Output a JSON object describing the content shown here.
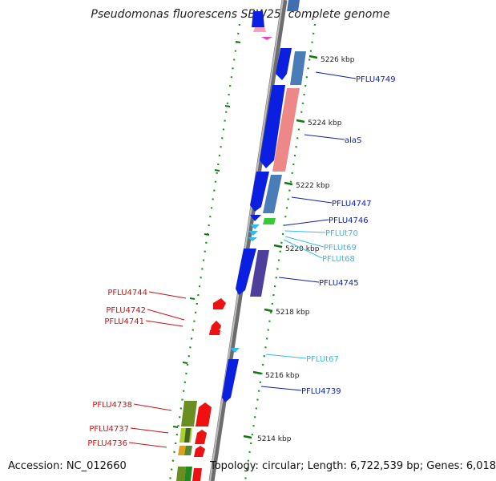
{
  "title": "Pseudomonas fluorescens SBW25, complete genome",
  "footer": {
    "accession": "Accession: NC_012660",
    "summary": "Topology: circular; Length: 6,722,539 bp; Genes: 6,018"
  },
  "ticks": [
    "5226 kbp",
    "5224 kbp",
    "5222 kbp",
    "5220 kbp",
    "5218 kbp",
    "5216 kbp",
    "5214 kbp"
  ],
  "plus_labels": [
    "PFLU4749",
    "alaS",
    "PFLU4747",
    "PFLU4746",
    "PFLUt70",
    "PFLUt69",
    "PFLUt68",
    "PFLU4745",
    "PFLUt67",
    "PFLU4739"
  ],
  "minus_labels": [
    "PFLU4744",
    "PFLU4742",
    "PFLU4741",
    "PFLU4738",
    "PFLU4737",
    "PFLU4736"
  ],
  "colors": {
    "plus_gene": "#0b1fe0",
    "plus_label": "#0b1fb0",
    "trna": "#33bbee",
    "minus_gene": "#ee1111",
    "minus_label": "#cc1111",
    "tick": "#117711",
    "backbone": "#8a8a8a"
  }
}
